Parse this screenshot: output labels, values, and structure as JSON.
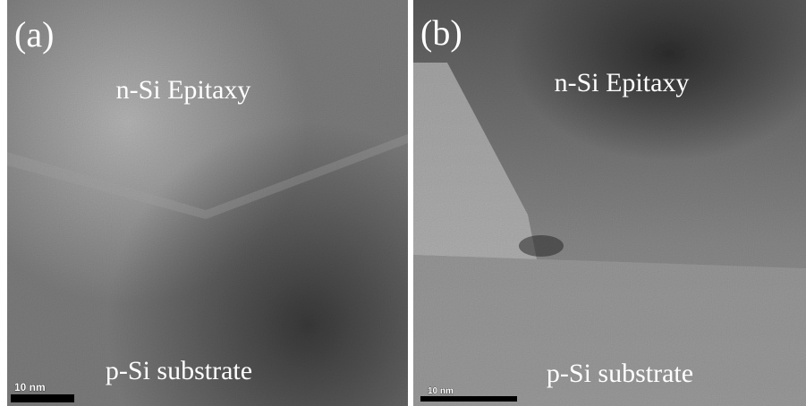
{
  "panels": [
    {
      "label": "(a)",
      "top_label": "n-Si Epitaxy",
      "bottom_label": "p-Si substrate",
      "scale_bar": "10 nm"
    },
    {
      "label": "(b)",
      "top_label": "n-Si Epitaxy",
      "bottom_label": "p-Si substrate",
      "scale_bar": "10 nm"
    }
  ]
}
